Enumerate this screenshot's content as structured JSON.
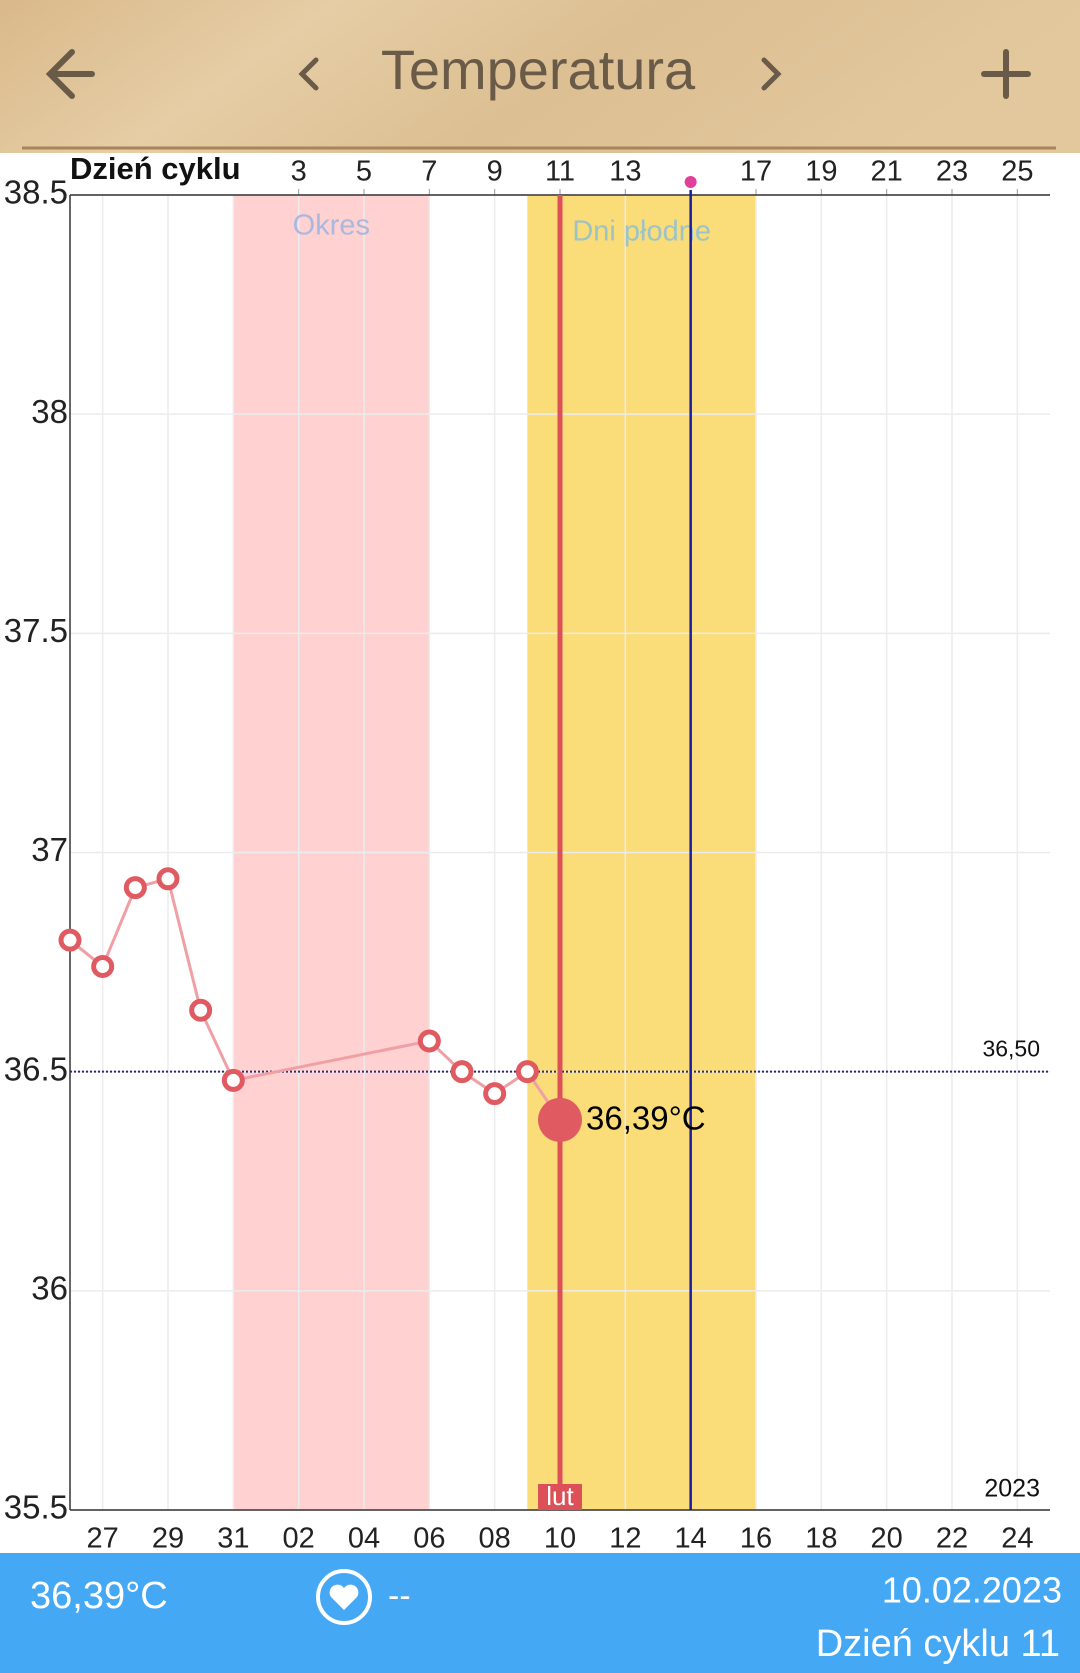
{
  "header": {
    "title": "Temperatura"
  },
  "chart_data": {
    "type": "line",
    "x_label": "Dzień cyklu",
    "xlim": [
      0,
      30
    ],
    "xticks": [
      {
        "value": 1,
        "label": "27"
      },
      {
        "value": 3,
        "label": "29"
      },
      {
        "value": 5,
        "label": "31"
      },
      {
        "value": 7,
        "label": "02"
      },
      {
        "value": 9,
        "label": "04"
      },
      {
        "value": 11,
        "label": "06"
      },
      {
        "value": 13,
        "label": "08"
      },
      {
        "value": 15,
        "label": "10"
      },
      {
        "value": 17,
        "label": "12"
      },
      {
        "value": 19,
        "label": "14"
      },
      {
        "value": 21,
        "label": "16"
      },
      {
        "value": 23,
        "label": "18"
      },
      {
        "value": 25,
        "label": "20"
      },
      {
        "value": 27,
        "label": "22"
      },
      {
        "value": 29,
        "label": "24"
      }
    ],
    "top_xticks": [
      {
        "value": 7,
        "label": "3"
      },
      {
        "value": 9,
        "label": "5"
      },
      {
        "value": 11,
        "label": "7"
      },
      {
        "value": 13,
        "label": "9"
      },
      {
        "value": 15,
        "label": "11"
      },
      {
        "value": 17,
        "label": "13"
      },
      {
        "value": 21,
        "label": "17"
      },
      {
        "value": 23,
        "label": "19"
      },
      {
        "value": 25,
        "label": "21"
      },
      {
        "value": 27,
        "label": "23"
      },
      {
        "value": 29,
        "label": "25"
      }
    ],
    "ylim": [
      35.5,
      38.5
    ],
    "yticks": [
      35.5,
      36,
      36.5,
      37,
      37.5,
      38,
      38.5
    ],
    "grid": true,
    "series": [
      {
        "color": "#e05a62",
        "x": [
          0,
          1,
          2,
          3,
          4,
          5,
          11,
          12,
          13,
          14,
          15
        ],
        "values": [
          36.8,
          36.74,
          36.92,
          36.94,
          36.64,
          36.48,
          36.57,
          36.5,
          36.45,
          36.5,
          36.39
        ],
        "value_labels": [
          null,
          null,
          null,
          null,
          null,
          null,
          null,
          null,
          null,
          null,
          "36,39°C"
        ]
      }
    ],
    "bands": [
      {
        "label": "Okres",
        "from": 5,
        "to": 11,
        "color": "#ffd1d1",
        "text_color": "#a9b8e0"
      },
      {
        "label": "Dni płodne",
        "from": 14,
        "to": 21,
        "color": "#fadc78",
        "text_color": "#9cc3c8"
      }
    ],
    "reference_line": {
      "value": 36.5,
      "label": "36,50",
      "color": "#2a2a7a"
    },
    "today": {
      "x": 15,
      "label": "lut",
      "color": "#dc5058"
    },
    "ovulation": {
      "x": 19,
      "color": "#1c1ca0",
      "marker_color": "#e0409a"
    },
    "year": "2023"
  },
  "status": {
    "temperature": "36,39°C",
    "pulse": "--",
    "date": "10.02.2023",
    "cycle_day": "Dzień cyklu 11"
  }
}
